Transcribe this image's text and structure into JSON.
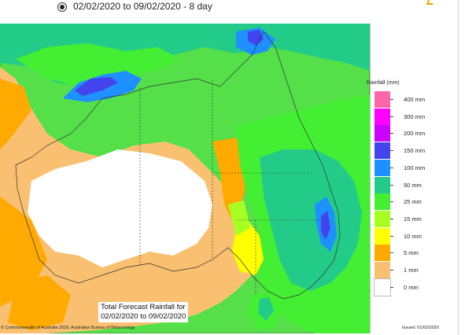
{
  "period_selector": {
    "selected_label": "02/02/2020 to 09/02/2020 - 8 day"
  },
  "map": {
    "title_line1": "Total Forecast Rainfall for",
    "title_line2": "02/02/2020 to 09/02/2020",
    "copyright": "© Commonwealth of Australia 2020, Australian Bureau of Meteorology",
    "issued": "Issued: 01/02/2020"
  },
  "legend": {
    "title": "Rainfall (mm)",
    "items": [
      {
        "label": "400 mm",
        "color": "#ff66aa"
      },
      {
        "label": "300 mm",
        "color": "#ff00ff"
      },
      {
        "label": "200 mm",
        "color": "#cc00ff"
      },
      {
        "label": "150 mm",
        "color": "#4444ee"
      },
      {
        "label": "100 mm",
        "color": "#1e90ff"
      },
      {
        "label": "50 mm",
        "color": "#22cc88"
      },
      {
        "label": "25 mm",
        "color": "#44ee33"
      },
      {
        "label": "15 mm",
        "color": "#aaff22"
      },
      {
        "label": "10 mm",
        "color": "#ffff00"
      },
      {
        "label": "5 mm",
        "color": "#ffaa00"
      },
      {
        "label": "1 mm",
        "color": "#f8c070"
      },
      {
        "label": "0 mm",
        "color": "#ffffff"
      }
    ]
  }
}
